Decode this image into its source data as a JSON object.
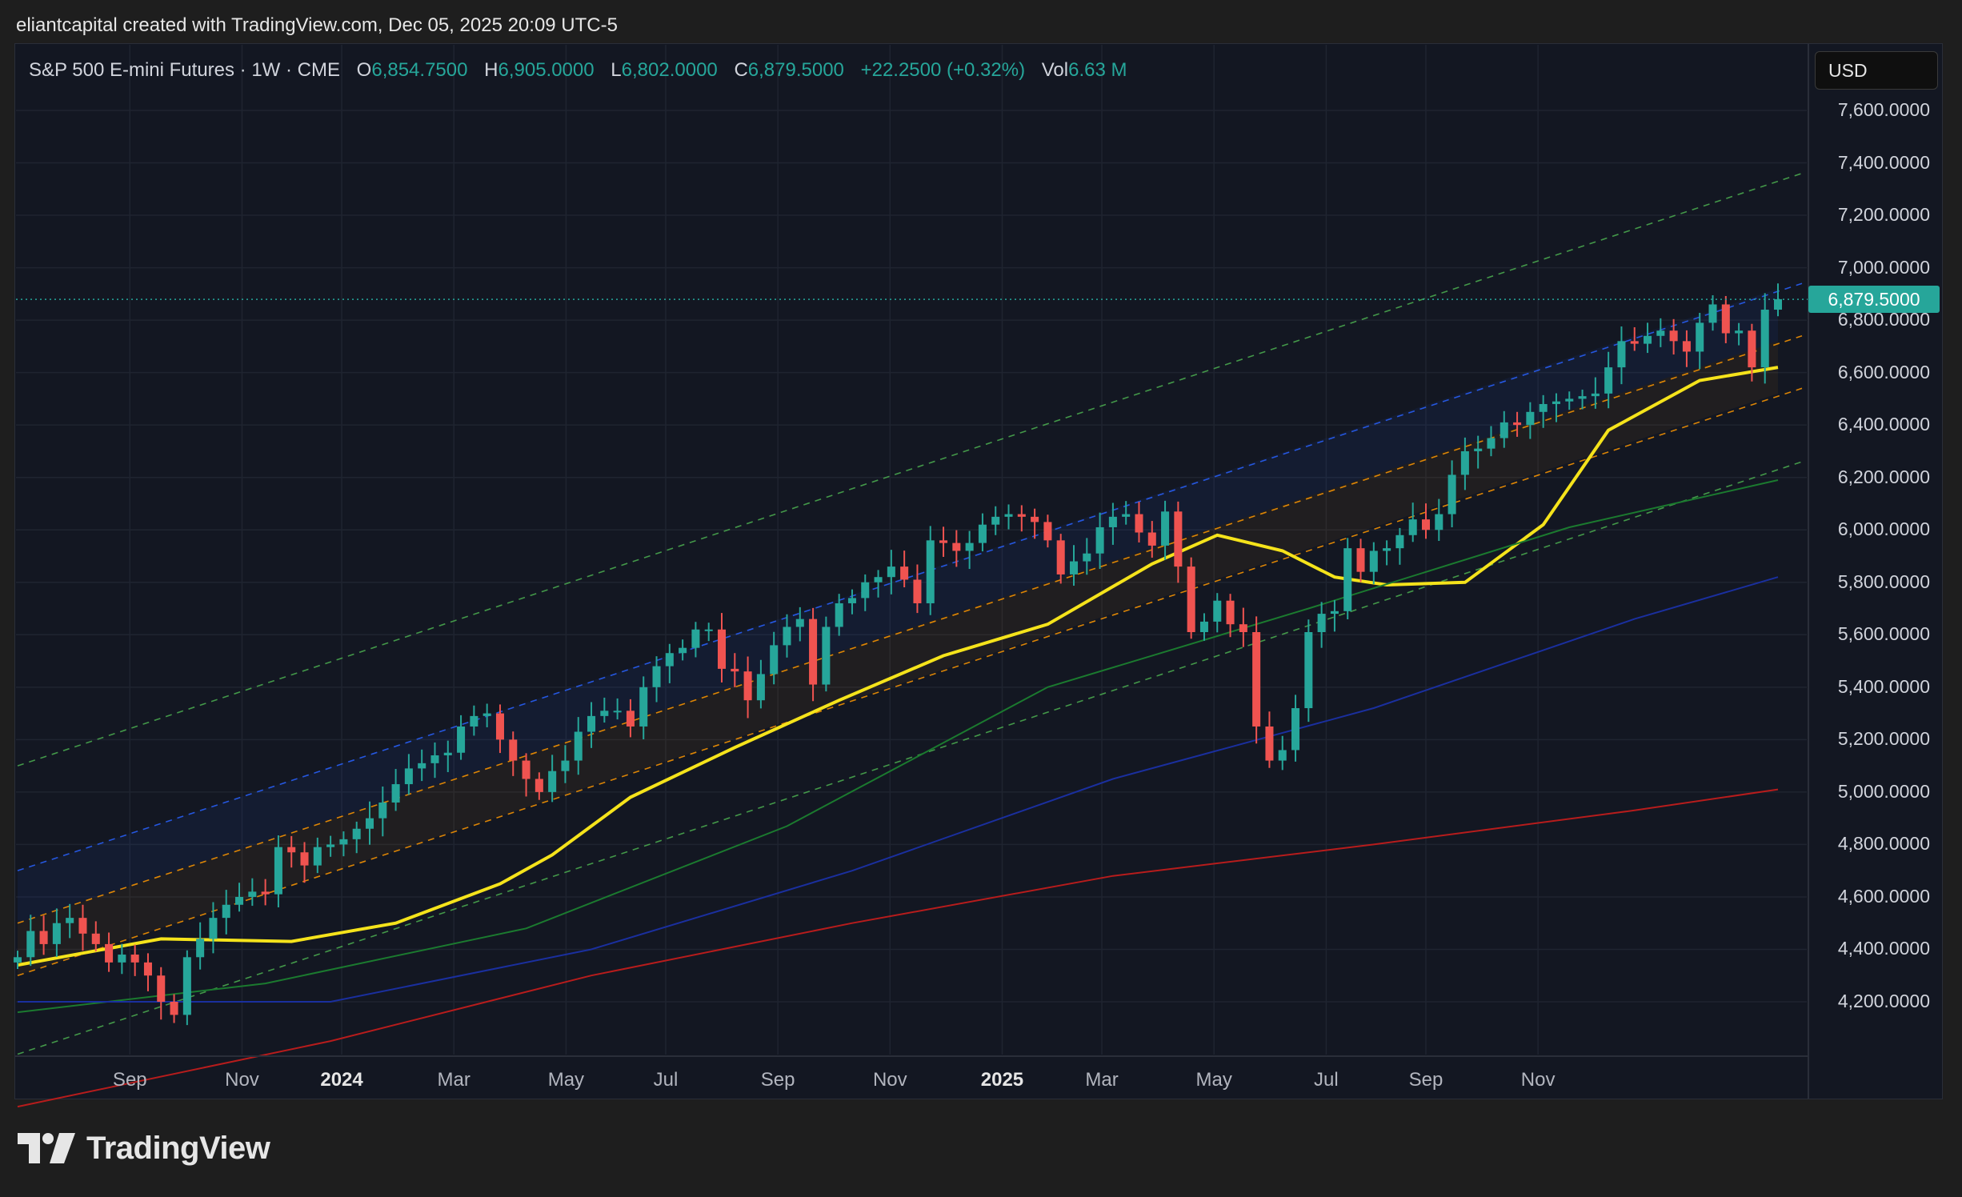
{
  "header": {
    "credit": "eliantcapital created with TradingView.com, Dec 05, 2025 20:09 UTC-5"
  },
  "legend": {
    "symbol": "S&P 500 E-mini Futures · 1W · CME",
    "open_label": "O",
    "open": "6,854.7500",
    "high_label": "H",
    "high": "6,905.0000",
    "low_label": "L",
    "low": "6,802.0000",
    "close_label": "C",
    "close": "6,879.5000",
    "change": "+22.2500 (+0.32%)",
    "vol_label": "Vol",
    "vol": "6.63 M"
  },
  "currency": "USD",
  "last_price": "6,879.5000",
  "brand": {
    "name": "TradingView"
  },
  "colors": {
    "up": "#26a69a",
    "down": "#ef5350",
    "ma_yellow": "#f5e31b",
    "background": "#131722"
  },
  "chart_data": {
    "type": "candlestick",
    "title": "S&P 500 E-mini Futures · 1W · CME",
    "ylim": [
      4000,
      7800
    ],
    "y_ticks": [
      "7,600.0000",
      "7,400.0000",
      "7,200.0000",
      "7,000.0000",
      "6,800.0000",
      "6,600.0000",
      "6,400.0000",
      "6,200.0000",
      "6,000.0000",
      "5,800.0000",
      "5,600.0000",
      "5,400.0000",
      "5,200.0000",
      "5,000.0000",
      "4,800.0000",
      "4,600.0000",
      "4,400.0000",
      "4,200.0000"
    ],
    "x_ticks": [
      {
        "label": "Sep",
        "week": 5
      },
      {
        "label": "Nov",
        "week": 14
      },
      {
        "label": "2024",
        "week": 22,
        "year": true
      },
      {
        "label": "Mar",
        "week": 31
      },
      {
        "label": "May",
        "week": 40
      },
      {
        "label": "Jul",
        "week": 48
      },
      {
        "label": "Sep",
        "week": 57
      },
      {
        "label": "Nov",
        "week": 66
      },
      {
        "label": "2025",
        "week": 75,
        "year": true
      },
      {
        "label": "Mar",
        "week": 83
      },
      {
        "label": "May",
        "week": 92
      },
      {
        "label": "Jul",
        "week": 101
      },
      {
        "label": "Sep",
        "week": 109
      },
      {
        "label": "Nov",
        "week": 118
      }
    ],
    "week_range": [
      1,
      123
    ],
    "closes": [
      4370,
      4470,
      4420,
      4500,
      4520,
      4460,
      4420,
      4350,
      4380,
      4350,
      4300,
      4200,
      4150,
      4370,
      4440,
      4520,
      4570,
      4600,
      4620,
      4610,
      4790,
      4770,
      4720,
      4790,
      4800,
      4820,
      4860,
      4900,
      4960,
      5030,
      5090,
      5110,
      5140,
      5150,
      5250,
      5290,
      5300,
      5200,
      5120,
      5050,
      5000,
      5080,
      5120,
      5230,
      5290,
      5310,
      5310,
      5250,
      5400,
      5480,
      5530,
      5550,
      5620,
      5620,
      5470,
      5460,
      5350,
      5450,
      5560,
      5630,
      5660,
      5410,
      5630,
      5720,
      5740,
      5800,
      5820,
      5860,
      5810,
      5720,
      5960,
      5950,
      5920,
      5950,
      6020,
      6050,
      6060,
      6050,
      6030,
      5960,
      5830,
      5880,
      5910,
      6010,
      6050,
      6060,
      5990,
      5940,
      6070,
      5860,
      5610,
      5650,
      5730,
      5640,
      5610,
      5250,
      5120,
      5160,
      5320,
      5610,
      5680,
      5690,
      5930,
      5840,
      5920,
      5930,
      5980,
      6040,
      6000,
      6060,
      6210,
      6300,
      6310,
      6350,
      6410,
      6400,
      6450,
      6480,
      6490,
      6500,
      6510,
      6520,
      6620,
      6720,
      6710,
      6740,
      6760,
      6720,
      6680,
      6790,
      6860,
      6750,
      6760,
      6620,
      6840,
      6880
    ],
    "up_color": "#26a69a",
    "down_color": "#ef5350",
    "moving_averages": [
      {
        "color": "#f5e31b",
        "values": [
          [
            1,
            4340
          ],
          [
            12,
            4440
          ],
          [
            22,
            4430
          ],
          [
            30,
            4500
          ],
          [
            38,
            4650
          ],
          [
            42,
            4760
          ],
          [
            48,
            4980
          ],
          [
            56,
            5170
          ],
          [
            64,
            5350
          ],
          [
            72,
            5520
          ],
          [
            80,
            5640
          ],
          [
            88,
            5870
          ],
          [
            93,
            5980
          ],
          [
            98,
            5920
          ],
          [
            102,
            5820
          ],
          [
            106,
            5790
          ],
          [
            112,
            5800
          ],
          [
            118,
            6020
          ],
          [
            123,
            6380
          ],
          [
            130,
            6570
          ],
          [
            136,
            6620
          ]
        ]
      },
      {
        "color": "#1b7a2f",
        "values": [
          [
            1,
            4160
          ],
          [
            20,
            4270
          ],
          [
            40,
            4480
          ],
          [
            60,
            4870
          ],
          [
            80,
            5400
          ],
          [
            100,
            5700
          ],
          [
            120,
            6010
          ],
          [
            136,
            6190
          ]
        ]
      },
      {
        "color": "#1a2f9e",
        "values": [
          [
            1,
            4200
          ],
          [
            25,
            4200
          ],
          [
            45,
            4400
          ],
          [
            65,
            4700
          ],
          [
            85,
            5050
          ],
          [
            105,
            5320
          ],
          [
            125,
            5660
          ],
          [
            136,
            5820
          ]
        ]
      },
      {
        "color": "#b71c1c",
        "values": [
          [
            1,
            3800
          ],
          [
            25,
            4050
          ],
          [
            45,
            4300
          ],
          [
            65,
            4500
          ],
          [
            85,
            4680
          ],
          [
            105,
            4800
          ],
          [
            125,
            4930
          ],
          [
            136,
            5010
          ]
        ]
      }
    ],
    "channel": {
      "mid_start": [
        1,
        4500
      ],
      "mid_end": [
        136,
        6720
      ],
      "offsets": [
        {
          "offset": 600,
          "color": "#4caf50"
        },
        {
          "offset": 200,
          "color": "#2962ff"
        },
        {
          "offset": 0,
          "color": "#ff9800"
        },
        {
          "offset": -200,
          "color": "#ff9800"
        },
        {
          "offset": -500,
          "color": "#4caf50"
        }
      ]
    },
    "last_price": 6879.5
  }
}
